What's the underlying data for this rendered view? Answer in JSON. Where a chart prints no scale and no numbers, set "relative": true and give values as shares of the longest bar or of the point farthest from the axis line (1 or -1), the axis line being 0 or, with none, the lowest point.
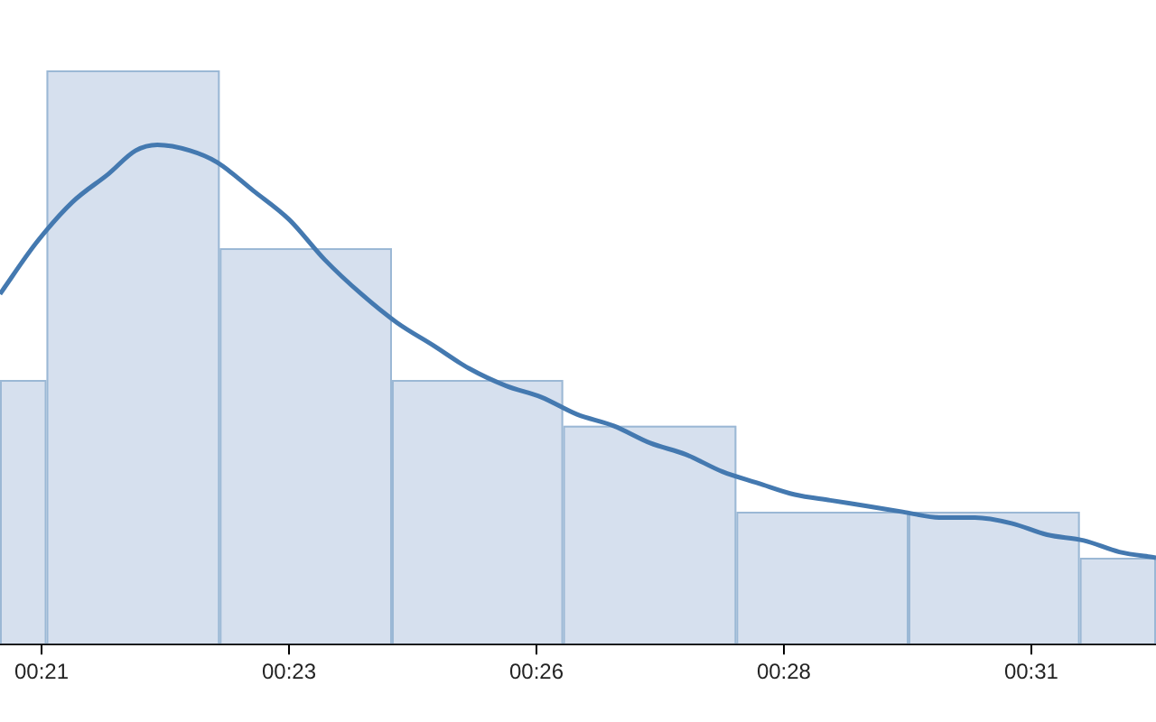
{
  "chart_data": {
    "type": "histogram",
    "relative": true,
    "bins": [
      20.58,
      21.05,
      22.8,
      24.54,
      26.27,
      28.02,
      29.76,
      31.49,
      32.26
    ],
    "values": [
      0.46,
      1,
      0.69,
      0.46,
      0.38,
      0.23,
      0.23,
      0.15
    ],
    "color": "#d6e0ee",
    "series": [
      {
        "type": "line",
        "color": "#4479b0",
        "x": [
          20.58,
          20.95,
          21.31,
          21.68,
          21.95,
          22.17,
          22.5,
          22.77,
          23.14,
          23.5,
          23.86,
          24.23,
          24.59,
          24.96,
          25.32,
          25.69,
          26.05,
          26.41,
          26.78,
          27.15,
          27.51,
          27.88,
          28.24,
          28.61,
          28.97,
          29.34,
          29.7,
          30.07,
          30.43,
          30.8,
          31.16,
          31.53,
          31.89,
          32.26
        ],
        "values": [
          0.61,
          0.7,
          0.77,
          0.82,
          0.86,
          0.87,
          0.86,
          0.84,
          0.79,
          0.74,
          0.67,
          0.61,
          0.56,
          0.52,
          0.48,
          0.45,
          0.43,
          0.4,
          0.38,
          0.35,
          0.33,
          0.3,
          0.28,
          0.26,
          0.25,
          0.24,
          0.23,
          0.22,
          0.22,
          0.21,
          0.19,
          0.18,
          0.16,
          0.15
        ]
      }
    ],
    "xlim": [
      20.58,
      32.26
    ],
    "xticks": [
      {
        "value": 21,
        "label": "00:21"
      },
      {
        "value": 23.5,
        "label": "00:23"
      },
      {
        "value": 26,
        "label": "00:26"
      },
      {
        "value": 28.5,
        "label": "00:28"
      },
      {
        "value": 31,
        "label": "00:31"
      }
    ],
    "grid": false,
    "legend": false,
    "marker": "none"
  }
}
